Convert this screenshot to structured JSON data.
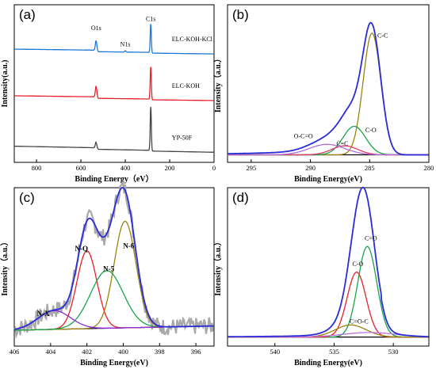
{
  "chart_data": [
    {
      "panel": "(a)",
      "type": "line",
      "xlabel": "Binding Energy（eV）",
      "ylabel": "Intensity(a.u.)",
      "xlim": [
        900,
        0
      ],
      "x_ticks": [
        "800",
        "600",
        "400",
        "200",
        "0"
      ],
      "x_tick_values": [
        800,
        600,
        400,
        200,
        0
      ],
      "ylim": [
        0,
        1.25
      ],
      "peak_labels": [
        {
          "text": "O1s",
          "x": 531,
          "y": 1.05
        },
        {
          "text": "N1s",
          "x": 400,
          "y": 0.92
        },
        {
          "text": "C1s",
          "x": 285,
          "y": 1.12
        }
      ],
      "series": [
        {
          "name": "ELC-KOH-KCl",
          "color": "#1f77d4",
          "offset": 0.86,
          "peaks": [
            {
              "x": 285,
              "h": 0.23,
              "w": 2.5
            },
            {
              "x": 531,
              "h": 0.08,
              "w": 3.5
            },
            {
              "x": 400,
              "h": 0.01,
              "w": 3
            }
          ],
          "drift": 0.02
        },
        {
          "name": "ELC-KOH",
          "color": "#e8202a",
          "offset": 0.49,
          "peaks": [
            {
              "x": 285,
              "h": 0.26,
              "w": 2.5
            },
            {
              "x": 531,
              "h": 0.09,
              "w": 3.5
            }
          ],
          "drift": 0.02
        },
        {
          "name": "YP-50F",
          "color": "#444444",
          "offset": 0.08,
          "peaks": [
            {
              "x": 285,
              "h": 0.35,
              "w": 2.5
            },
            {
              "x": 531,
              "h": 0.05,
              "w": 3.5
            }
          ],
          "drift": 0.03
        }
      ]
    },
    {
      "panel": "(b)",
      "type": "line",
      "xlabel": "Binding Energy(eV)",
      "ylabel": "Intensity（a.u.）",
      "xlim": [
        297,
        280
      ],
      "x_ticks": [
        "295",
        "290",
        "285",
        "280"
      ],
      "x_tick_values": [
        295,
        290,
        285,
        280
      ],
      "ylim": [
        0,
        1.05
      ],
      "baseline": 0.05,
      "envelope_color": "#2b2bd8",
      "components": [
        {
          "name": "C-C",
          "x": 284.8,
          "h": 0.81,
          "w": 0.75,
          "color": "#9a8210"
        },
        {
          "name": "C-O",
          "x": 286.3,
          "h": 0.19,
          "w": 0.95,
          "color": "#19a44a"
        },
        {
          "name": "C=C",
          "x": 287.1,
          "h": 0.06,
          "w": 1.1,
          "color": "#e23a6a"
        },
        {
          "name": "O-C=O",
          "x": 288.6,
          "h": 0.07,
          "w": 1.5,
          "color": "#b56ad6"
        }
      ],
      "labels": [
        {
          "text": "C-C",
          "x": 283.9,
          "y": 0.83
        },
        {
          "text": "C-O",
          "x": 284.9,
          "y": 0.2
        },
        {
          "text": "C=C",
          "x": 287.3,
          "y": 0.11
        },
        {
          "text": "O-C=O",
          "x": 290.6,
          "y": 0.16
        }
      ]
    },
    {
      "panel": "(c)",
      "type": "line",
      "xlabel": "Binding Energy(eV)",
      "ylabel": "Intensity（a.u.）",
      "xlim": [
        406,
        395
      ],
      "x_ticks": [
        "406",
        "404",
        "402",
        "400",
        "398",
        "396"
      ],
      "x_tick_values": [
        406,
        404,
        402,
        400,
        398,
        396
      ],
      "ylim": [
        0,
        1.1
      ],
      "baseline": {
        "start": 0.11,
        "end": 0.14
      },
      "raw_color": "#a9a9a9",
      "envelope_color": "#2b2bd8",
      "components": [
        {
          "name": "N-Q",
          "x": 402.0,
          "h": 0.54,
          "w": 0.55,
          "color": "#e8202a"
        },
        {
          "name": "N-6",
          "x": 399.9,
          "h": 0.74,
          "w": 0.6,
          "color": "#9a8210"
        },
        {
          "name": "N-5",
          "x": 400.9,
          "h": 0.4,
          "w": 0.9,
          "color": "#19a44a"
        },
        {
          "name": "N-X",
          "x": 403.8,
          "h": 0.13,
          "w": 0.9,
          "color": "#8a2bd8"
        }
      ],
      "labels": [
        {
          "text": "N-Q",
          "x": 402.3,
          "y": 0.66
        },
        {
          "text": "N-6",
          "x": 399.7,
          "y": 0.68
        },
        {
          "text": "N-5",
          "x": 400.8,
          "y": 0.52
        },
        {
          "text": "N-X",
          "x": 404.4,
          "y": 0.21
        }
      ]
    },
    {
      "panel": "(d)",
      "type": "line",
      "xlabel": "Binding Energy(eV)",
      "ylabel": "Intensity（a.u.）",
      "xlim": [
        544,
        527
      ],
      "x_ticks": [
        "540",
        "535",
        "530"
      ],
      "x_tick_values": [
        540,
        535,
        530
      ],
      "ylim": [
        0,
        1.05
      ],
      "baseline": 0.06,
      "envelope_color": "#2b2bd8",
      "components": [
        {
          "name": "C=O",
          "x": 532.2,
          "h": 0.6,
          "w": 0.8,
          "color": "#19a44a"
        },
        {
          "name": "C-O",
          "x": 533.1,
          "h": 0.43,
          "w": 0.8,
          "color": "#e8202a"
        },
        {
          "name": "C=O-C",
          "x": 533.6,
          "h": 0.08,
          "w": 1.3,
          "color": "#9a8210"
        },
        {
          "name": "",
          "x": 532.0,
          "h": 0.03,
          "w": 2.2,
          "color": "#c070e0"
        }
      ],
      "labels": [
        {
          "text": "C=O",
          "x": 531.9,
          "y": 0.7
        },
        {
          "text": "C-O",
          "x": 533.0,
          "y": 0.53
        },
        {
          "text": "C=O-C",
          "x": 532.9,
          "y": 0.15
        }
      ]
    }
  ]
}
